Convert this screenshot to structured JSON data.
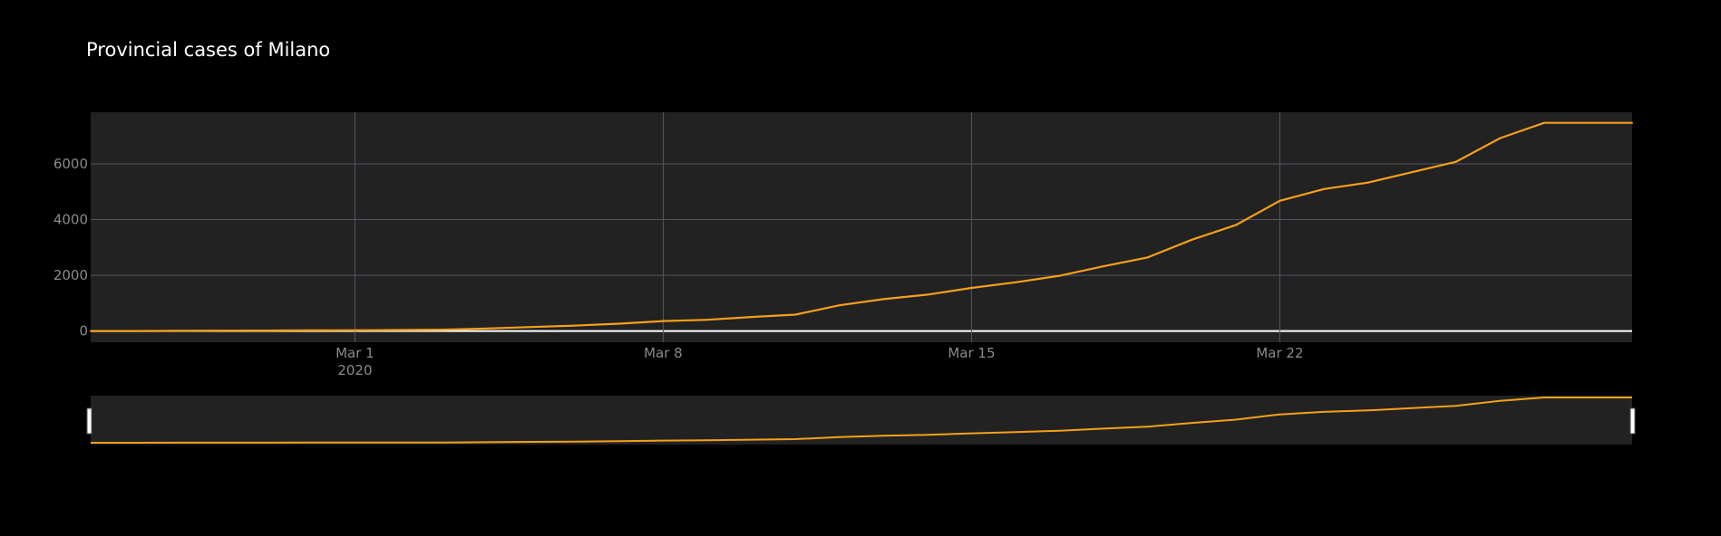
{
  "chart_data": {
    "type": "line",
    "title": "Provincial cases of Milano",
    "xlabel": "",
    "ylabel": "",
    "x_start": "2020-02-24",
    "x_end": "2020-03-30",
    "xlim": [
      "2020-02-24",
      "2020-03-30"
    ],
    "ylim": [
      -400,
      7850
    ],
    "y_ticks": [
      0,
      2000,
      4000,
      6000
    ],
    "x_ticks": [
      {
        "date": "2020-03-01",
        "label": "Mar 1",
        "sublabel": "2020"
      },
      {
        "date": "2020-03-08",
        "label": "Mar 8",
        "sublabel": ""
      },
      {
        "date": "2020-03-15",
        "label": "Mar 15",
        "sublabel": ""
      },
      {
        "date": "2020-03-22",
        "label": "Mar 22",
        "sublabel": ""
      }
    ],
    "grid": true,
    "rangeslider": true,
    "line_color": "#f5a01a",
    "series": [
      {
        "name": "",
        "x": [
          "2020-02-24",
          "2020-02-25",
          "2020-02-26",
          "2020-02-27",
          "2020-02-28",
          "2020-02-29",
          "2020-03-01",
          "2020-03-02",
          "2020-03-03",
          "2020-03-04",
          "2020-03-05",
          "2020-03-06",
          "2020-03-07",
          "2020-03-08",
          "2020-03-09",
          "2020-03-10",
          "2020-03-11",
          "2020-03-12",
          "2020-03-13",
          "2020-03-14",
          "2020-03-15",
          "2020-03-16",
          "2020-03-17",
          "2020-03-18",
          "2020-03-19",
          "2020-03-20",
          "2020-03-21",
          "2020-03-22",
          "2020-03-23",
          "2020-03-24",
          "2020-03-25",
          "2020-03-26",
          "2020-03-27",
          "2020-03-28",
          "2020-03-29",
          "2020-03-30"
        ],
        "y": [
          0,
          3,
          8,
          15,
          20,
          25,
          30,
          38,
          50,
          93,
          145,
          197,
          267,
          361,
          406,
          506,
          592,
          925,
          1146,
          1307,
          1550,
          1750,
          1983,
          2326,
          2644,
          3278,
          3804,
          4672,
          5096,
          5326,
          5701,
          6074,
          6922,
          7469,
          7469,
          7469
        ]
      }
    ]
  }
}
